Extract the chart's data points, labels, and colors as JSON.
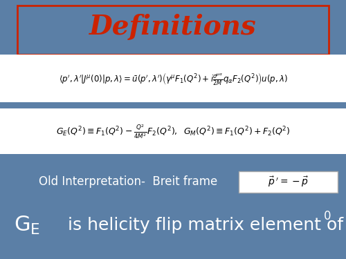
{
  "bg_color": "#5b7fa6",
  "title": "Definitions",
  "title_color": "#cc2200",
  "title_fontsize": 28,
  "title_box_color": "#cc2200",
  "eq3_text": "Old Interpretation-  Breit frame",
  "eq4_rest": "  is helicity flip matrix element of J",
  "eq4_sup": "0",
  "white_box_color": "#ffffff",
  "text_color": "#ffffff",
  "dark_text_color": "#000000"
}
